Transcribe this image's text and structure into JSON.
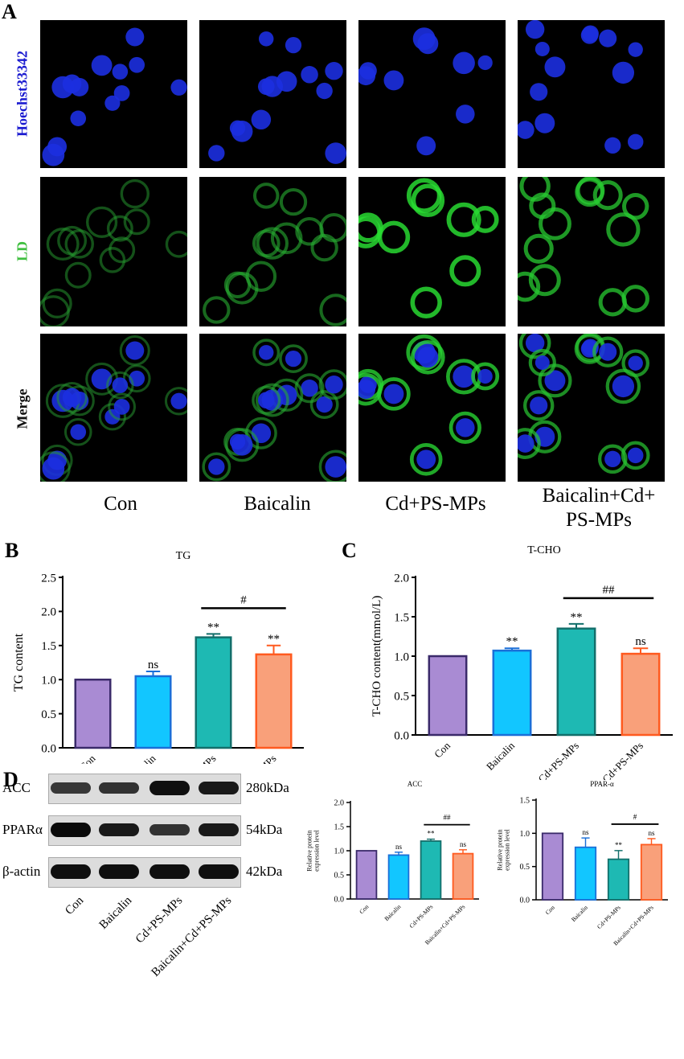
{
  "panels": {
    "a": "A",
    "b": "B",
    "c": "C",
    "d": "D"
  },
  "microscopy": {
    "rows": [
      {
        "label": "Hoechst33342",
        "color": "#1a1ad0",
        "type": "nuclei"
      },
      {
        "label": "LD",
        "color": "#3fbf3f",
        "type": "lipid"
      },
      {
        "label": "Merge",
        "color": "#111111",
        "type": "merge"
      }
    ],
    "columns": [
      "Con",
      "Baicalin",
      "Cd+PS-MPs",
      "Baicalin+Cd+\nPS-MPs"
    ],
    "lipid_intensity": [
      0.35,
      0.5,
      0.9,
      0.75
    ]
  },
  "western_blot": {
    "proteins": [
      {
        "name": "ACC",
        "kda": "280kDa",
        "intensity": [
          0.55,
          0.6,
          0.95,
          0.85
        ]
      },
      {
        "name": "PPARα",
        "kda": "54kDa",
        "intensity": [
          1.0,
          0.85,
          0.6,
          0.85
        ]
      },
      {
        "name": "β-actin",
        "kda": "42kDa",
        "intensity": [
          0.95,
          0.95,
          0.95,
          0.95
        ]
      }
    ],
    "lanes": [
      "Con",
      "Baicalin",
      "Cd+PS-MPs",
      "Baicalin+Cd+PS-MPs"
    ]
  },
  "chart_data": [
    {
      "id": "tg",
      "type": "bar",
      "title": "TG",
      "ylabel": "TG content",
      "categories": [
        "Con",
        "Baicalin",
        "Cd+PS-MPs",
        "Baicalin+Cd+PS-MPs"
      ],
      "values": [
        1.0,
        1.05,
        1.62,
        1.37
      ],
      "errors": [
        0.0,
        0.07,
        0.05,
        0.13
      ],
      "ylim": [
        0,
        2.5
      ],
      "yticks": [
        "0.0",
        "0.5",
        "1.0",
        "1.5",
        "2.0",
        "2.5"
      ],
      "bar_labels": [
        "",
        "ns",
        "**",
        "**"
      ],
      "bracket": {
        "from": 2,
        "to": 3,
        "label": "#"
      },
      "colors": {
        "fill": [
          "#a98bd3",
          "#12c6ff",
          "#1eb9b3",
          "#f9a07a"
        ],
        "edge": [
          "#3a2a6a",
          "#1a6fd8",
          "#136f6b",
          "#ff5a1f"
        ]
      }
    },
    {
      "id": "tcho",
      "type": "bar",
      "title": "T-CHO",
      "ylabel": "T-CHO content(mmol/L)",
      "categories": [
        "Con",
        "Baicalin",
        "Cd+PS-MPs",
        "Baicalin+Cd+PS-MPs"
      ],
      "values": [
        1.0,
        1.07,
        1.35,
        1.03
      ],
      "errors": [
        0.0,
        0.03,
        0.06,
        0.07
      ],
      "ylim": [
        0,
        2.0
      ],
      "yticks": [
        "0.0",
        "0.5",
        "1.0",
        "1.5",
        "2.0"
      ],
      "bar_labels": [
        "",
        "**",
        "**",
        "ns"
      ],
      "bracket": {
        "from": 2,
        "to": 3,
        "label": "##"
      },
      "colors": {
        "fill": [
          "#a98bd3",
          "#12c6ff",
          "#1eb9b3",
          "#f9a07a"
        ],
        "edge": [
          "#3a2a6a",
          "#1a6fd8",
          "#136f6b",
          "#ff5a1f"
        ]
      }
    },
    {
      "id": "acc",
      "type": "bar",
      "title": "ACC",
      "ylabel": "Relative protein\nexpression level",
      "categories": [
        "Con",
        "Baicalin",
        "Cd+PS-MPs",
        "Baicalin+Cd+PS-MPs"
      ],
      "values": [
        1.0,
        0.91,
        1.2,
        0.94
      ],
      "errors": [
        0.0,
        0.06,
        0.04,
        0.08
      ],
      "ylim": [
        0,
        2.0
      ],
      "yticks": [
        "0.0",
        "0.5",
        "1.0",
        "1.5",
        "2.0"
      ],
      "bar_labels": [
        "",
        "ns",
        "**",
        "ns"
      ],
      "bracket": {
        "from": 2,
        "to": 3,
        "label": "##"
      },
      "colors": {
        "fill": [
          "#a98bd3",
          "#12c6ff",
          "#1eb9b3",
          "#f9a07a"
        ],
        "edge": [
          "#3a2a6a",
          "#1a6fd8",
          "#136f6b",
          "#ff5a1f"
        ]
      }
    },
    {
      "id": "ppar",
      "type": "bar",
      "title": "PPAR-α",
      "ylabel": "Relative protein\nexpression level",
      "categories": [
        "Con",
        "Baicalin",
        "Cd+PS-MPs",
        "Baicalin+Cd+PS-MPs"
      ],
      "values": [
        1.0,
        0.79,
        0.61,
        0.83
      ],
      "errors": [
        0.0,
        0.14,
        0.13,
        0.09
      ],
      "ylim": [
        0,
        1.5
      ],
      "yticks": [
        "0.0",
        "0.5",
        "1.0",
        "1.5"
      ],
      "bar_labels": [
        "",
        "ns",
        "**",
        "ns"
      ],
      "bracket": {
        "from": 2,
        "to": 3,
        "label": "#"
      },
      "colors": {
        "fill": [
          "#a98bd3",
          "#12c6ff",
          "#1eb9b3",
          "#f9a07a"
        ],
        "edge": [
          "#3a2a6a",
          "#1a6fd8",
          "#136f6b",
          "#ff5a1f"
        ]
      }
    }
  ]
}
